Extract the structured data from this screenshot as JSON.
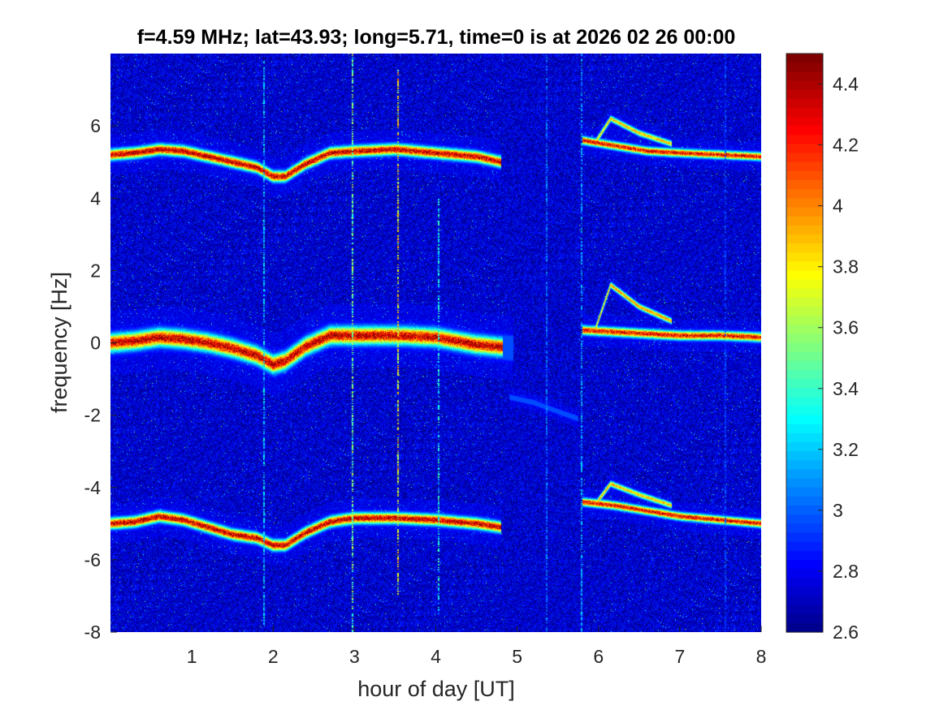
{
  "chart_data": {
    "type": "heatmap",
    "title": "f=4.59 MHz;  lat=43.93; long=5.71, time=0 is at 2026 02 26 00:00",
    "xlabel": "hour of day [UT]",
    "ylabel": "frequency [Hz]",
    "xlim": [
      0,
      8
    ],
    "ylim": [
      -8,
      8
    ],
    "xticks": [
      1,
      2,
      3,
      4,
      5,
      6,
      7,
      8
    ],
    "yticks": [
      6,
      4,
      2,
      0,
      -2,
      -4,
      -6,
      -8
    ],
    "colorbar": {
      "range": [
        2.6,
        4.5
      ],
      "ticks": [
        "4.4",
        "4.2",
        "4",
        "3.8",
        "3.6",
        "3.4",
        "3.2",
        "3",
        "2.8",
        "2.6"
      ],
      "tick_values": [
        4.4,
        4.2,
        4.0,
        3.8,
        3.6,
        3.4,
        3.2,
        3.0,
        2.8,
        2.6
      ],
      "colormap": "jet"
    },
    "background_level": 2.75,
    "gaps": [
      [
        4.82,
        5.75
      ]
    ],
    "traces": [
      {
        "points": [
          [
            0.0,
            5.2
          ],
          [
            0.3,
            5.25
          ],
          [
            0.6,
            5.35
          ],
          [
            0.9,
            5.3
          ],
          [
            1.2,
            5.15
          ],
          [
            1.5,
            5.0
          ],
          [
            1.8,
            4.85
          ],
          [
            2.0,
            4.6
          ],
          [
            2.15,
            4.6
          ],
          [
            2.4,
            4.95
          ],
          [
            2.7,
            5.25
          ],
          [
            3.0,
            5.3
          ],
          [
            3.5,
            5.35
          ],
          [
            4.0,
            5.25
          ],
          [
            4.5,
            5.15
          ],
          [
            4.8,
            5.0
          ]
        ],
        "width": 0.22,
        "level": 4.5
      },
      {
        "points": [
          [
            0.0,
            0.0
          ],
          [
            0.3,
            0.05
          ],
          [
            0.6,
            0.15
          ],
          [
            0.9,
            0.1
          ],
          [
            1.2,
            0.0
          ],
          [
            1.5,
            -0.15
          ],
          [
            1.8,
            -0.35
          ],
          [
            2.0,
            -0.6
          ],
          [
            2.15,
            -0.5
          ],
          [
            2.4,
            -0.1
          ],
          [
            2.7,
            0.2
          ],
          [
            3.0,
            0.2
          ],
          [
            3.5,
            0.2
          ],
          [
            4.0,
            0.15
          ],
          [
            4.5,
            -0.05
          ],
          [
            4.95,
            -0.15
          ]
        ],
        "width": 0.35,
        "level": 4.5
      },
      {
        "points": [
          [
            0.0,
            -5.0
          ],
          [
            0.3,
            -4.95
          ],
          [
            0.6,
            -4.8
          ],
          [
            0.9,
            -4.9
          ],
          [
            1.2,
            -5.1
          ],
          [
            1.5,
            -5.3
          ],
          [
            1.8,
            -5.4
          ],
          [
            2.0,
            -5.6
          ],
          [
            2.15,
            -5.6
          ],
          [
            2.4,
            -5.25
          ],
          [
            2.7,
            -4.95
          ],
          [
            3.0,
            -4.85
          ],
          [
            3.5,
            -4.85
          ],
          [
            4.0,
            -4.9
          ],
          [
            4.5,
            -5.0
          ],
          [
            4.8,
            -5.1
          ]
        ],
        "width": 0.22,
        "level": 4.5
      },
      {
        "points": [
          [
            5.8,
            5.6
          ],
          [
            6.2,
            5.45
          ],
          [
            6.6,
            5.3
          ],
          [
            7.0,
            5.25
          ],
          [
            7.5,
            5.2
          ],
          [
            8.0,
            5.15
          ]
        ],
        "width": 0.16,
        "level": 4.4
      },
      {
        "points": [
          [
            5.8,
            0.35
          ],
          [
            6.2,
            0.3
          ],
          [
            6.6,
            0.25
          ],
          [
            7.0,
            0.2
          ],
          [
            7.5,
            0.2
          ],
          [
            8.0,
            0.15
          ]
        ],
        "width": 0.18,
        "level": 4.4
      },
      {
        "points": [
          [
            5.8,
            -4.4
          ],
          [
            6.2,
            -4.5
          ],
          [
            6.6,
            -4.65
          ],
          [
            7.0,
            -4.8
          ],
          [
            7.5,
            -4.9
          ],
          [
            8.0,
            -5.0
          ]
        ],
        "width": 0.16,
        "level": 4.4
      },
      {
        "points": [
          [
            5.95,
            0.3
          ],
          [
            6.15,
            1.6
          ],
          [
            6.5,
            1.0
          ],
          [
            6.9,
            0.6
          ]
        ],
        "width": 0.12,
        "level": 4.1
      },
      {
        "points": [
          [
            5.95,
            5.5
          ],
          [
            6.15,
            6.2
          ],
          [
            6.5,
            5.8
          ],
          [
            6.9,
            5.5
          ]
        ],
        "width": 0.12,
        "level": 4.0
      },
      {
        "points": [
          [
            5.95,
            -4.5
          ],
          [
            6.15,
            -3.9
          ],
          [
            6.5,
            -4.2
          ],
          [
            6.9,
            -4.5
          ]
        ],
        "width": 0.12,
        "level": 4.0
      },
      {
        "points": [
          [
            4.9,
            -1.5
          ],
          [
            5.2,
            -1.65
          ],
          [
            5.5,
            -1.9
          ],
          [
            5.75,
            -2.1
          ]
        ],
        "width": 0.1,
        "level": 3.3
      }
    ],
    "vertical_streaks": [
      {
        "x": 1.88,
        "y0": -7.8,
        "y1": 7.8,
        "level": 3.3
      },
      {
        "x": 2.97,
        "y0": -8,
        "y1": 8,
        "level": 3.6
      },
      {
        "x": 3.53,
        "y0": -7,
        "y1": 7.6,
        "level": 3.9
      },
      {
        "x": 4.02,
        "y0": -7.5,
        "y1": 4,
        "level": 3.4
      },
      {
        "x": 5.35,
        "y0": -8,
        "y1": 8,
        "level": 3.1
      },
      {
        "x": 5.78,
        "y0": -8,
        "y1": 8,
        "level": 3.2
      },
      {
        "x": 7.55,
        "y0": -8,
        "y1": 8,
        "level": 3.0
      }
    ]
  }
}
